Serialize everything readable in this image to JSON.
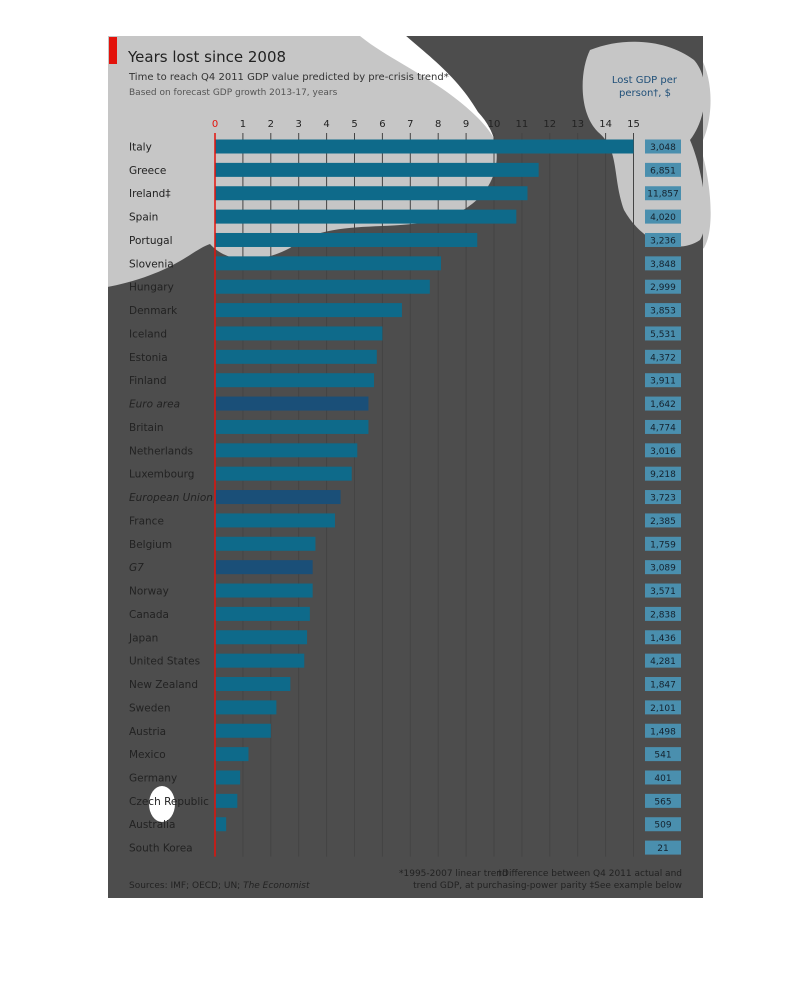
{
  "chart_data": {
    "type": "bar",
    "orientation": "horizontal",
    "title": "Years lost since 2008",
    "subtitle": "Time to reach Q4 2011 GDP value predicted by pre-crisis trend*",
    "subtitle2": "Based on forecast GDP growth 2013-17, years",
    "value_header_line1": "Lost GDP per",
    "value_header_line2": "person†, $",
    "xlim": [
      0,
      15
    ],
    "xticks": [
      0,
      1,
      2,
      3,
      4,
      5,
      6,
      7,
      8,
      9,
      10,
      11,
      12,
      13,
      14,
      15
    ],
    "grid": true,
    "categories": [
      "Italy",
      "Greece",
      "Ireland‡",
      "Spain",
      "Portugal",
      "Slovenia",
      "Hungary",
      "Denmark",
      "Iceland",
      "Estonia",
      "Finland",
      "Euro area",
      "Britain",
      "Netherlands",
      "Luxembourg",
      "European Union",
      "France",
      "Belgium",
      "G7",
      "Norway",
      "Canada",
      "Japan",
      "United States",
      "New Zealand",
      "Sweden",
      "Austria",
      "Mexico",
      "Germany",
      "Czech Republic",
      "Australia",
      "South Korea"
    ],
    "italic_categories": [
      "Euro area",
      "European Union",
      "G7"
    ],
    "values": [
      15.0,
      11.6,
      11.2,
      10.8,
      9.4,
      8.1,
      7.7,
      6.7,
      6.0,
      5.8,
      5.7,
      5.5,
      5.5,
      5.1,
      4.9,
      4.5,
      4.3,
      3.6,
      3.5,
      3.5,
      3.4,
      3.3,
      3.2,
      2.7,
      2.2,
      2.0,
      1.2,
      0.9,
      0.8,
      0.4,
      0.0
    ],
    "lost_gdp_per_person": [
      "3,048",
      "6,851",
      "11,857",
      "4,020",
      "3,236",
      "3,848",
      "2,999",
      "3,853",
      "5,531",
      "4,372",
      "3,911",
      "1,642",
      "4,774",
      "3,016",
      "9,218",
      "3,723",
      "2,385",
      "1,759",
      "3,089",
      "3,571",
      "2,838",
      "1,436",
      "4,281",
      "1,847",
      "2,101",
      "1,498",
      "541",
      "401",
      "565",
      "509",
      "21"
    ],
    "footnote_left": "*1995-2007 linear trend",
    "footnote_right_line1": "†Difference between Q4 2011 actual and",
    "footnote_right_line2": "trend GDP, at purchasing-power parity  ‡See example below",
    "source_label": "Sources: IMF; OECD; UN; ",
    "source_italic": "The Economist",
    "colors": {
      "bar": "#0e6a8a",
      "aggregate_bar": "#1a4f78",
      "value_box": "#4a8fae",
      "zero_line": "#e3120b",
      "accent": "#e3120b",
      "page_shade": "#4d4d4d",
      "blob": "#c6c6c6",
      "text": "#222222",
      "header_blue": "#1f4f78"
    }
  }
}
